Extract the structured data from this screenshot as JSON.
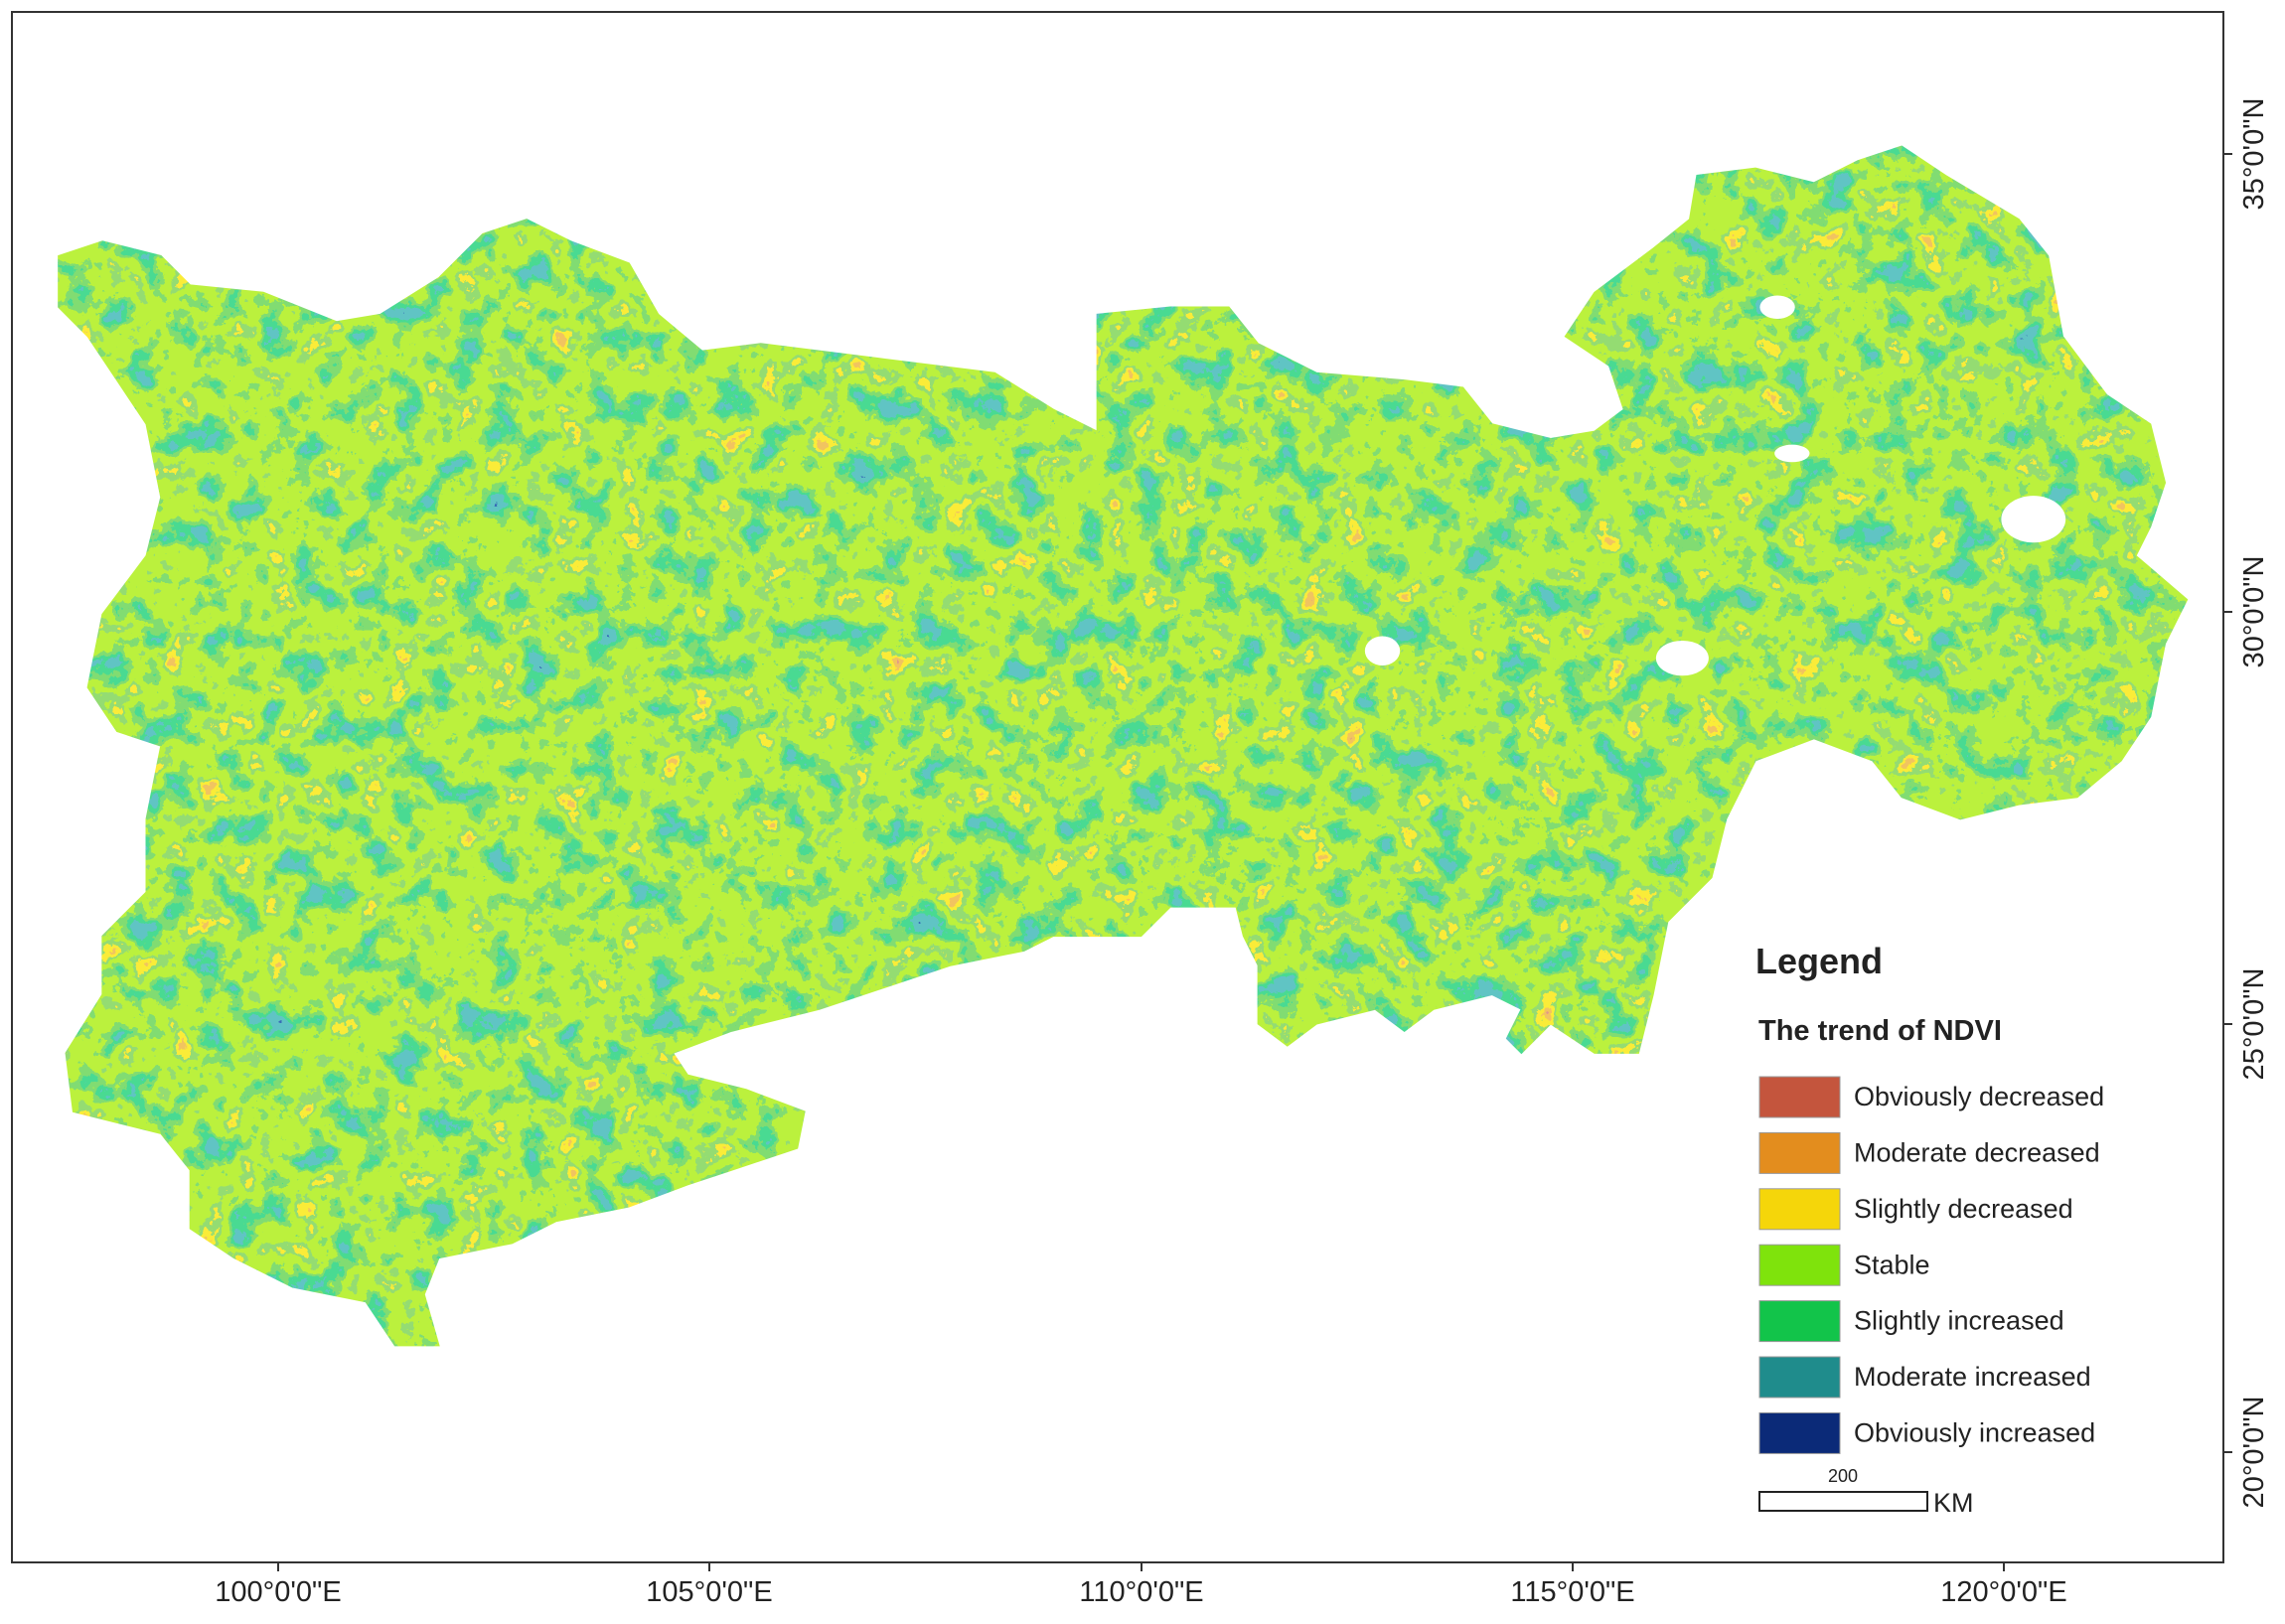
{
  "map": {
    "lon_labels": [
      "100°0'0\"E",
      "105°0'0\"E",
      "110°0'0\"E",
      "115°0'0\"E",
      "120°0'0\"E"
    ],
    "lat_labels": [
      "35°0'0\"N",
      "30°0'0\"N",
      "25°0'0\"N",
      "20°0'0\"N"
    ],
    "legend": {
      "title": "Legend",
      "subtitle": "The trend of NDVI",
      "items": [
        {
          "label": "Obviously decreased",
          "color": "#c4553d"
        },
        {
          "label": "Moderate decreased",
          "color": "#e38d1e"
        },
        {
          "label": "Slightly decreased",
          "color": "#f5d60a"
        },
        {
          "label": "Stable",
          "color": "#7fe30c"
        },
        {
          "label": "Slightly increased",
          "color": "#12c44a"
        },
        {
          "label": "Moderate increased",
          "color": "#1f8c8c"
        },
        {
          "label": "Obviously increased",
          "color": "#0b2a78"
        }
      ]
    },
    "scale_bar": {
      "distance": "200",
      "unit": "KM"
    }
  }
}
